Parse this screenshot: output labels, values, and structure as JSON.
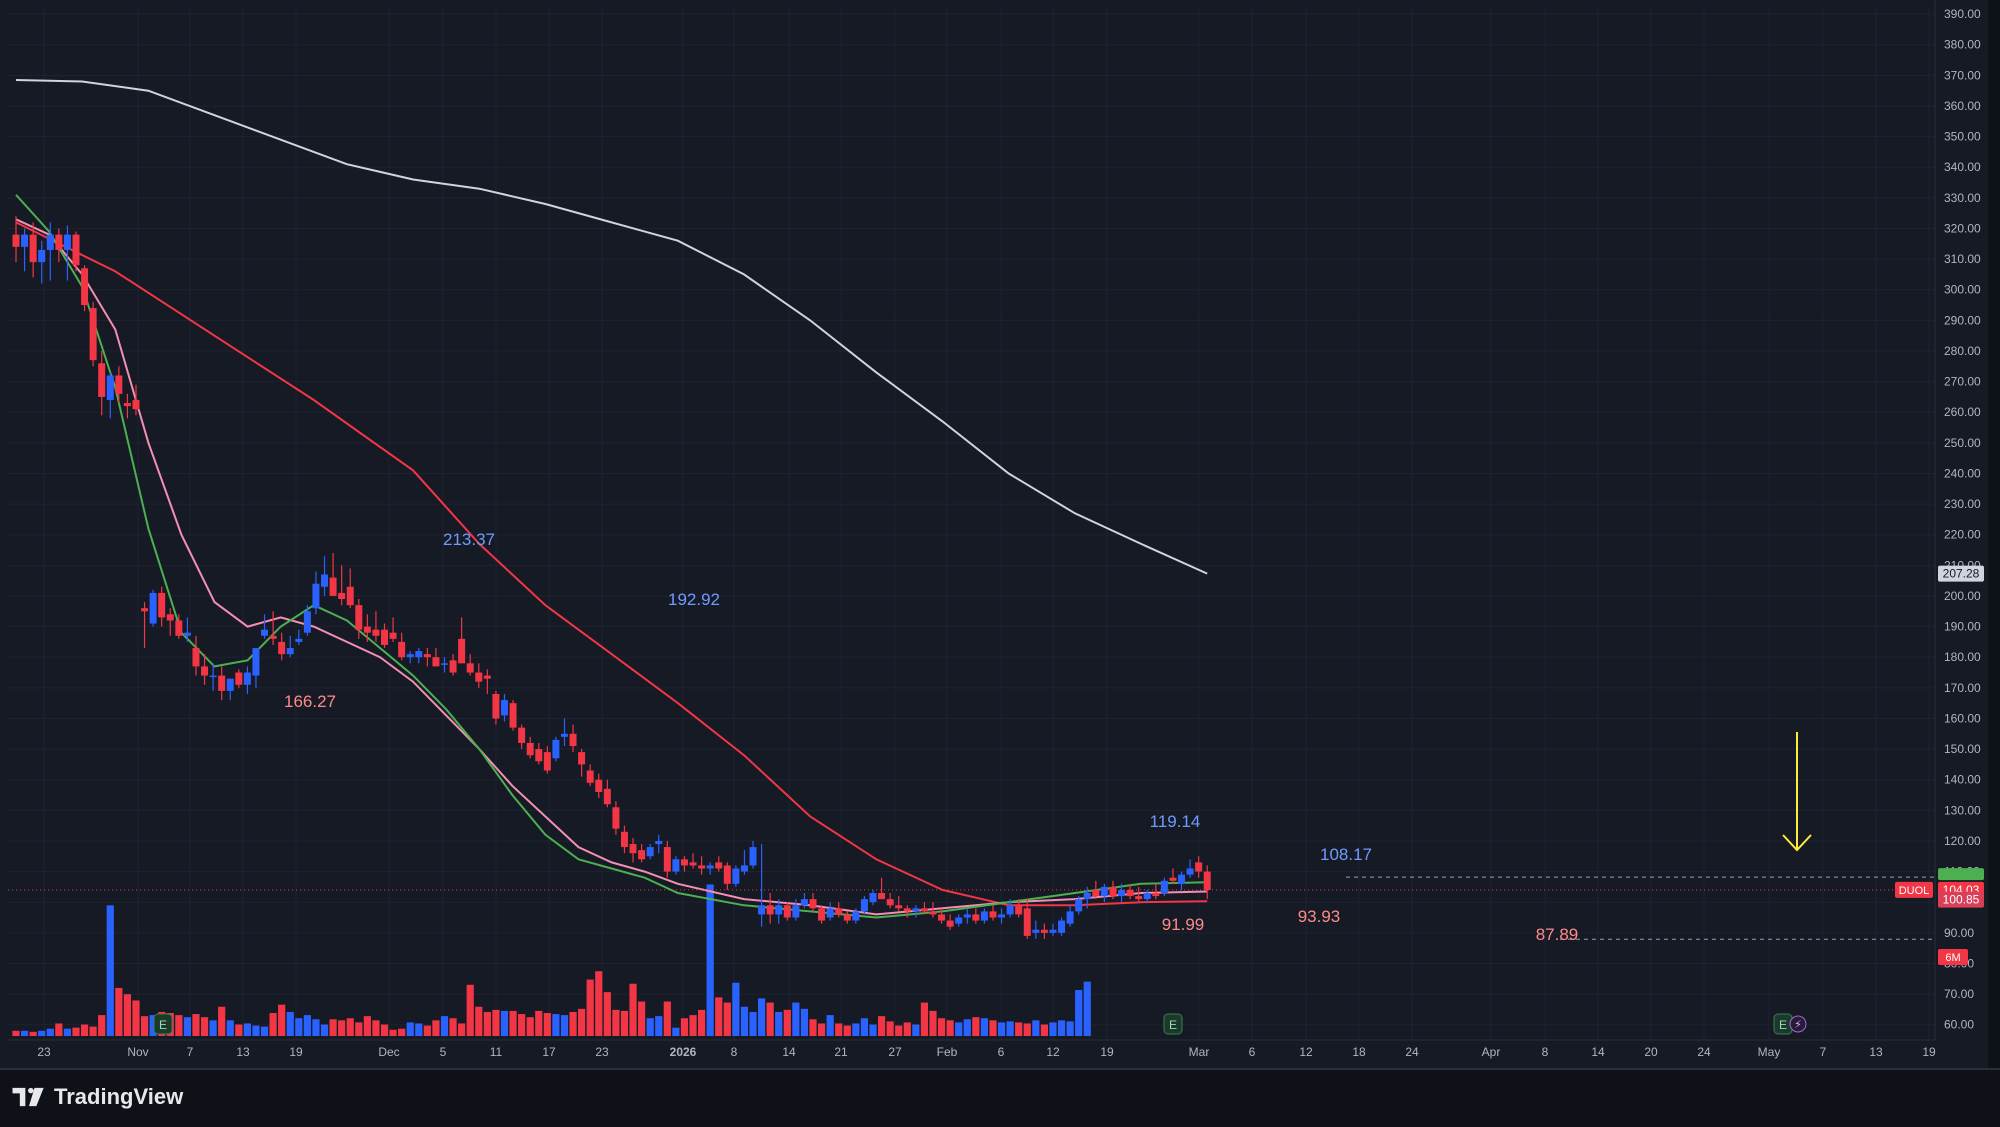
{
  "branding": {
    "name": "TradingView"
  },
  "colors": {
    "background": "#161a25",
    "grid": "#1f2330",
    "up": "#2962ff",
    "down": "#f23645",
    "ema_fast": "#4caf50",
    "ema_mid": "#f48fb1",
    "ema_slow": "#f23645",
    "sma_long": "#d1d4dc",
    "arrow": "#ffeb3b",
    "axis_text": "#b2b5be"
  },
  "chart_data": {
    "type": "candlestick",
    "symbol": "DUOL",
    "last_price": "104.03",
    "price_badge_2": "100.85",
    "sma_badge": "207.28",
    "volume_badge": "6M",
    "ylim": [
      55,
      392
    ],
    "y_ticks": [
      "390.00",
      "380.00",
      "370.00",
      "360.00",
      "350.00",
      "340.00",
      "330.00",
      "320.00",
      "310.00",
      "300.00",
      "290.00",
      "280.00",
      "270.00",
      "260.00",
      "250.00",
      "240.00",
      "230.00",
      "220.00",
      "210.00",
      "200.00",
      "190.00",
      "180.00",
      "170.00",
      "160.00",
      "150.00",
      "140.00",
      "130.00",
      "120.00",
      "110.00",
      "100.00",
      "90.00",
      "80.00",
      "70.00",
      "60.00"
    ],
    "x_ticks": [
      "23",
      "Nov",
      "7",
      "13",
      "19",
      "Dec",
      "5",
      "11",
      "17",
      "23",
      "2026",
      "8",
      "14",
      "21",
      "27",
      "Feb",
      "6",
      "12",
      "19",
      "Mar",
      "6",
      "12",
      "18",
      "24",
      "Apr",
      "8",
      "14",
      "20",
      "24",
      "May",
      "7",
      "13",
      "19"
    ],
    "annotations": [
      "213.37",
      "192.92",
      "166.27",
      "119.14",
      "91.99",
      "93.93",
      "108.17",
      "87.89"
    ],
    "earnings_markers": [
      "E",
      "E",
      "E"
    ],
    "candles": [
      {
        "o": 318,
        "h": 324,
        "l": 309,
        "c": 314
      },
      {
        "o": 314,
        "h": 320,
        "l": 306,
        "c": 318
      },
      {
        "o": 318,
        "h": 322,
        "l": 304,
        "c": 309
      },
      {
        "o": 309,
        "h": 316,
        "l": 302,
        "c": 313
      },
      {
        "o": 313,
        "h": 322,
        "l": 303,
        "c": 318
      },
      {
        "o": 318,
        "h": 320,
        "l": 309,
        "c": 313
      },
      {
        "o": 313,
        "h": 321,
        "l": 303,
        "c": 318
      },
      {
        "o": 318,
        "h": 319,
        "l": 306,
        "c": 308
      },
      {
        "o": 307,
        "h": 308,
        "l": 293,
        "c": 295
      },
      {
        "o": 294,
        "h": 296,
        "l": 275,
        "c": 277
      },
      {
        "o": 276,
        "h": 280,
        "l": 259,
        "c": 265
      },
      {
        "o": 264,
        "h": 273,
        "l": 258,
        "c": 272
      },
      {
        "o": 272,
        "h": 275,
        "l": 263,
        "c": 266
      },
      {
        "o": 263,
        "h": 266,
        "l": 258,
        "c": 262
      },
      {
        "o": 264,
        "h": 269,
        "l": 259,
        "c": 261
      },
      {
        "o": 196,
        "h": 198,
        "l": 183,
        "c": 195
      },
      {
        "o": 191,
        "h": 202,
        "l": 190,
        "c": 201
      },
      {
        "o": 201,
        "h": 203,
        "l": 190,
        "c": 193
      },
      {
        "o": 194,
        "h": 196,
        "l": 187,
        "c": 192
      },
      {
        "o": 192,
        "h": 194,
        "l": 186,
        "c": 187
      },
      {
        "o": 187,
        "h": 193,
        "l": 185,
        "c": 188
      },
      {
        "o": 183,
        "h": 187,
        "l": 174,
        "c": 177
      },
      {
        "o": 177,
        "h": 181,
        "l": 171,
        "c": 174
      },
      {
        "o": 174,
        "h": 178,
        "l": 169,
        "c": 174
      },
      {
        "o": 174,
        "h": 177,
        "l": 166,
        "c": 169
      },
      {
        "o": 169,
        "h": 173,
        "l": 166,
        "c": 173
      },
      {
        "o": 175,
        "h": 176,
        "l": 170,
        "c": 171
      },
      {
        "o": 171,
        "h": 177,
        "l": 168,
        "c": 175
      },
      {
        "o": 174,
        "h": 183,
        "l": 170,
        "c": 183
      },
      {
        "o": 187,
        "h": 194,
        "l": 186,
        "c": 189
      },
      {
        "o": 187,
        "h": 195,
        "l": 184,
        "c": 186
      },
      {
        "o": 185,
        "h": 188,
        "l": 179,
        "c": 181
      },
      {
        "o": 181,
        "h": 187,
        "l": 180,
        "c": 183
      },
      {
        "o": 185,
        "h": 189,
        "l": 184,
        "c": 186
      },
      {
        "o": 188,
        "h": 197,
        "l": 187,
        "c": 195
      },
      {
        "o": 196,
        "h": 208,
        "l": 194,
        "c": 204
      },
      {
        "o": 203,
        "h": 213,
        "l": 200,
        "c": 207
      },
      {
        "o": 206,
        "h": 214,
        "l": 200,
        "c": 200
      },
      {
        "o": 201,
        "h": 210,
        "l": 197,
        "c": 199
      },
      {
        "o": 203,
        "h": 209,
        "l": 196,
        "c": 197
      },
      {
        "o": 197,
        "h": 199,
        "l": 186,
        "c": 189
      },
      {
        "o": 190,
        "h": 194,
        "l": 185,
        "c": 188
      },
      {
        "o": 189,
        "h": 195,
        "l": 185,
        "c": 187
      },
      {
        "o": 189,
        "h": 191,
        "l": 183,
        "c": 184
      },
      {
        "o": 188,
        "h": 193,
        "l": 185,
        "c": 186
      },
      {
        "o": 185,
        "h": 188,
        "l": 179,
        "c": 180
      },
      {
        "o": 180,
        "h": 182,
        "l": 178,
        "c": 181
      },
      {
        "o": 180,
        "h": 183,
        "l": 178,
        "c": 182
      },
      {
        "o": 181,
        "h": 183,
        "l": 177,
        "c": 180
      },
      {
        "o": 180,
        "h": 183,
        "l": 177,
        "c": 177
      },
      {
        "o": 178,
        "h": 180,
        "l": 175,
        "c": 178
      },
      {
        "o": 179,
        "h": 181,
        "l": 174,
        "c": 175
      },
      {
        "o": 186,
        "h": 193,
        "l": 178,
        "c": 178
      },
      {
        "o": 178,
        "h": 181,
        "l": 174,
        "c": 175
      },
      {
        "o": 175,
        "h": 178,
        "l": 170,
        "c": 172
      },
      {
        "o": 174,
        "h": 176,
        "l": 168,
        "c": 173
      },
      {
        "o": 168,
        "h": 169,
        "l": 158,
        "c": 160
      },
      {
        "o": 161,
        "h": 168,
        "l": 159,
        "c": 166
      },
      {
        "o": 165,
        "h": 166,
        "l": 156,
        "c": 157
      },
      {
        "o": 157,
        "h": 158,
        "l": 150,
        "c": 152
      },
      {
        "o": 152,
        "h": 154,
        "l": 147,
        "c": 148
      },
      {
        "o": 150,
        "h": 152,
        "l": 145,
        "c": 146
      },
      {
        "o": 149,
        "h": 151,
        "l": 142,
        "c": 143
      },
      {
        "o": 147,
        "h": 154,
        "l": 146,
        "c": 153
      },
      {
        "o": 154,
        "h": 160,
        "l": 151,
        "c": 155
      },
      {
        "o": 155,
        "h": 158,
        "l": 149,
        "c": 151
      },
      {
        "o": 149,
        "h": 150,
        "l": 141,
        "c": 145
      },
      {
        "o": 143,
        "h": 145,
        "l": 138,
        "c": 139
      },
      {
        "o": 140,
        "h": 142,
        "l": 134,
        "c": 136
      },
      {
        "o": 137,
        "h": 140,
        "l": 131,
        "c": 132
      },
      {
        "o": 131,
        "h": 133,
        "l": 122,
        "c": 124
      },
      {
        "o": 123,
        "h": 125,
        "l": 116,
        "c": 118
      },
      {
        "o": 119,
        "h": 121,
        "l": 113,
        "c": 116
      },
      {
        "o": 117,
        "h": 119,
        "l": 113,
        "c": 114
      },
      {
        "o": 115,
        "h": 119,
        "l": 114,
        "c": 118
      },
      {
        "o": 119,
        "h": 122,
        "l": 116,
        "c": 120
      },
      {
        "o": 118,
        "h": 120,
        "l": 108,
        "c": 110
      },
      {
        "o": 110,
        "h": 115,
        "l": 109,
        "c": 114
      },
      {
        "o": 114,
        "h": 115,
        "l": 110,
        "c": 112
      },
      {
        "o": 113,
        "h": 116,
        "l": 111,
        "c": 112
      },
      {
        "o": 112,
        "h": 115,
        "l": 109,
        "c": 111
      },
      {
        "o": 111,
        "h": 113,
        "l": 109,
        "c": 112
      },
      {
        "o": 113,
        "h": 115,
        "l": 110,
        "c": 111
      },
      {
        "o": 112,
        "h": 113,
        "l": 104,
        "c": 106
      },
      {
        "o": 106,
        "h": 112,
        "l": 105,
        "c": 111
      },
      {
        "o": 110,
        "h": 117,
        "l": 109,
        "c": 112
      },
      {
        "o": 112,
        "h": 120,
        "l": 111,
        "c": 118
      },
      {
        "o": 96,
        "h": 119,
        "l": 92,
        "c": 99
      },
      {
        "o": 99,
        "h": 103,
        "l": 93,
        "c": 96
      },
      {
        "o": 96,
        "h": 101,
        "l": 93,
        "c": 99
      },
      {
        "o": 99,
        "h": 100,
        "l": 94,
        "c": 95
      },
      {
        "o": 95,
        "h": 101,
        "l": 94,
        "c": 99
      },
      {
        "o": 99,
        "h": 103,
        "l": 98,
        "c": 101
      },
      {
        "o": 101,
        "h": 103,
        "l": 97,
        "c": 98
      },
      {
        "o": 98,
        "h": 99,
        "l": 93,
        "c": 94
      },
      {
        "o": 95,
        "h": 100,
        "l": 94,
        "c": 98
      },
      {
        "o": 98,
        "h": 100,
        "l": 95,
        "c": 96
      },
      {
        "o": 96,
        "h": 97,
        "l": 93,
        "c": 94
      },
      {
        "o": 94,
        "h": 98,
        "l": 93,
        "c": 97
      },
      {
        "o": 97,
        "h": 102,
        "l": 96,
        "c": 101
      },
      {
        "o": 100,
        "h": 104,
        "l": 99,
        "c": 103
      },
      {
        "o": 103,
        "h": 108,
        "l": 101,
        "c": 101
      },
      {
        "o": 101,
        "h": 103,
        "l": 98,
        "c": 99
      },
      {
        "o": 99,
        "h": 102,
        "l": 97,
        "c": 98
      },
      {
        "o": 98,
        "h": 99,
        "l": 95,
        "c": 97
      },
      {
        "o": 97,
        "h": 99,
        "l": 95,
        "c": 98
      },
      {
        "o": 98,
        "h": 100,
        "l": 96,
        "c": 97
      },
      {
        "o": 97,
        "h": 100,
        "l": 95,
        "c": 96
      },
      {
        "o": 96,
        "h": 98,
        "l": 93,
        "c": 94
      },
      {
        "o": 94,
        "h": 96,
        "l": 91,
        "c": 92
      },
      {
        "o": 93,
        "h": 96,
        "l": 92,
        "c": 95
      },
      {
        "o": 95,
        "h": 98,
        "l": 93,
        "c": 96
      },
      {
        "o": 96,
        "h": 98,
        "l": 93,
        "c": 94
      },
      {
        "o": 94,
        "h": 98,
        "l": 93,
        "c": 97
      },
      {
        "o": 97,
        "h": 99,
        "l": 94,
        "c": 95
      },
      {
        "o": 95,
        "h": 98,
        "l": 93,
        "c": 96
      },
      {
        "o": 96,
        "h": 101,
        "l": 95,
        "c": 99
      },
      {
        "o": 99,
        "h": 101,
        "l": 95,
        "c": 96
      },
      {
        "o": 98,
        "h": 101,
        "l": 88,
        "c": 89
      },
      {
        "o": 90,
        "h": 94,
        "l": 88,
        "c": 91
      },
      {
        "o": 91,
        "h": 93,
        "l": 88,
        "c": 90
      },
      {
        "o": 90,
        "h": 93,
        "l": 89,
        "c": 91
      },
      {
        "o": 90,
        "h": 95,
        "l": 89,
        "c": 94
      },
      {
        "o": 93,
        "h": 99,
        "l": 92,
        "c": 97
      },
      {
        "o": 97,
        "h": 102,
        "l": 96,
        "c": 101
      },
      {
        "o": 101,
        "h": 105,
        "l": 98,
        "c": 103
      },
      {
        "o": 104,
        "h": 107,
        "l": 101,
        "c": 102
      },
      {
        "o": 102,
        "h": 106,
        "l": 100,
        "c": 105
      },
      {
        "o": 105,
        "h": 107,
        "l": 101,
        "c": 102
      },
      {
        "o": 102,
        "h": 106,
        "l": 100,
        "c": 104
      },
      {
        "o": 104,
        "h": 106,
        "l": 101,
        "c": 102
      },
      {
        "o": 102,
        "h": 105,
        "l": 100,
        "c": 101
      },
      {
        "o": 101,
        "h": 104,
        "l": 100,
        "c": 103
      },
      {
        "o": 103,
        "h": 106,
        "l": 101,
        "c": 102
      },
      {
        "o": 103,
        "h": 108,
        "l": 102,
        "c": 107
      },
      {
        "o": 108,
        "h": 111,
        "l": 106,
        "c": 107
      },
      {
        "o": 106,
        "h": 110,
        "l": 104,
        "c": 109
      },
      {
        "o": 109,
        "h": 114,
        "l": 108,
        "c": 111
      },
      {
        "o": 113,
        "h": 115,
        "l": 108,
        "c": 110
      },
      {
        "o": 110,
        "h": 112,
        "l": 101,
        "c": 104
      }
    ],
    "volume_scale": 10,
    "volumes": [
      0.5,
      0.5,
      0.4,
      0.5,
      0.7,
      1.2,
      0.7,
      0.8,
      1.1,
      0.9,
      2.0,
      12.5,
      4.6,
      4.0,
      3.4,
      1.9,
      2.0,
      2.3,
      2.2,
      2.0,
      1.8,
      2.1,
      1.8,
      1.5,
      2.8,
      1.5,
      1.1,
      1.2,
      1.0,
      0.9,
      2.2,
      3.0,
      2.3,
      1.7,
      2.0,
      1.6,
      1.1,
      1.6,
      1.5,
      1.7,
      1.3,
      1.9,
      1.5,
      1.1,
      0.6,
      0.7,
      1.3,
      1.2,
      1.0,
      1.5,
      1.9,
      1.7,
      1.2,
      4.9,
      2.8,
      2.3,
      2.5,
      2.4,
      2.4,
      2.1,
      1.8,
      2.4,
      2.2,
      2.1,
      2.0,
      2.3,
      2.6,
      5.4,
      6.2,
      4.2,
      2.5,
      2.4,
      5.0,
      3.3,
      1.7,
      1.9,
      3.3,
      0.8,
      1.7,
      2.0,
      2.5,
      14.5,
      3.7,
      3.2,
      5.1,
      2.8,
      2.3,
      3.6,
      3.2,
      2.3,
      2.5,
      3.2,
      2.6,
      1.6,
      1.2,
      2.0,
      1.2,
      1.0,
      1.2,
      1.7,
      1.1,
      1.9,
      1.4,
      1.0,
      1.3,
      1.1,
      3.2,
      2.4,
      1.7,
      1.5,
      1.3,
      1.6,
      1.8,
      1.7,
      1.5,
      1.3,
      1.4,
      1.3,
      1.2,
      1.5,
      1.1,
      1.3,
      1.5,
      1.4,
      4.4,
      5.2
    ],
    "sma_long": [
      [
        0,
        368.5
      ],
      [
        10,
        368
      ],
      [
        20,
        365
      ],
      [
        30,
        357
      ],
      [
        40,
        349
      ],
      [
        50,
        341
      ],
      [
        60,
        336
      ],
      [
        70,
        333
      ],
      [
        80,
        328
      ],
      [
        90,
        322
      ],
      [
        100,
        316
      ],
      [
        110,
        305
      ],
      [
        120,
        290
      ],
      [
        130,
        273
      ],
      [
        140,
        257
      ],
      [
        150,
        240
      ],
      [
        160,
        227
      ],
      [
        170,
        217
      ],
      [
        180,
        207.3
      ]
    ],
    "ema_slow": [
      [
        0,
        322
      ],
      [
        15,
        306
      ],
      [
        30,
        285
      ],
      [
        45,
        264
      ],
      [
        60,
        241
      ],
      [
        70,
        217
      ],
      [
        80,
        197
      ],
      [
        90,
        181
      ],
      [
        100,
        165
      ],
      [
        110,
        148
      ],
      [
        120,
        128
      ],
      [
        130,
        114
      ],
      [
        140,
        104
      ],
      [
        150,
        99
      ],
      [
        160,
        99
      ],
      [
        170,
        100
      ],
      [
        180,
        100.3
      ]
    ],
    "ema_mid": [
      [
        0,
        323
      ],
      [
        5,
        318
      ],
      [
        10,
        305
      ],
      [
        15,
        287
      ],
      [
        20,
        250
      ],
      [
        25,
        220
      ],
      [
        30,
        198
      ],
      [
        35,
        190
      ],
      [
        40,
        193
      ],
      [
        45,
        190
      ],
      [
        50,
        185
      ],
      [
        55,
        180
      ],
      [
        60,
        172
      ],
      [
        65,
        161
      ],
      [
        70,
        150
      ],
      [
        75,
        138
      ],
      [
        80,
        128
      ],
      [
        85,
        118
      ],
      [
        90,
        113
      ],
      [
        95,
        110
      ],
      [
        100,
        106
      ],
      [
        110,
        101
      ],
      [
        120,
        99
      ],
      [
        130,
        96
      ],
      [
        140,
        98
      ],
      [
        150,
        100
      ],
      [
        160,
        101
      ],
      [
        170,
        103
      ],
      [
        180,
        103.5
      ]
    ],
    "ema_fast": [
      [
        0,
        331
      ],
      [
        5,
        319
      ],
      [
        10,
        301
      ],
      [
        15,
        268
      ],
      [
        20,
        222
      ],
      [
        25,
        188
      ],
      [
        30,
        177
      ],
      [
        35,
        179
      ],
      [
        40,
        190
      ],
      [
        45,
        197
      ],
      [
        50,
        192
      ],
      [
        55,
        183
      ],
      [
        60,
        174
      ],
      [
        65,
        163
      ],
      [
        70,
        150
      ],
      [
        75,
        135
      ],
      [
        80,
        122
      ],
      [
        85,
        114
      ],
      [
        90,
        111
      ],
      [
        95,
        108
      ],
      [
        100,
        103
      ],
      [
        110,
        99
      ],
      [
        120,
        97
      ],
      [
        130,
        95
      ],
      [
        140,
        97
      ],
      [
        150,
        100
      ],
      [
        160,
        103
      ],
      [
        170,
        106
      ],
      [
        180,
        106.5
      ]
    ]
  }
}
